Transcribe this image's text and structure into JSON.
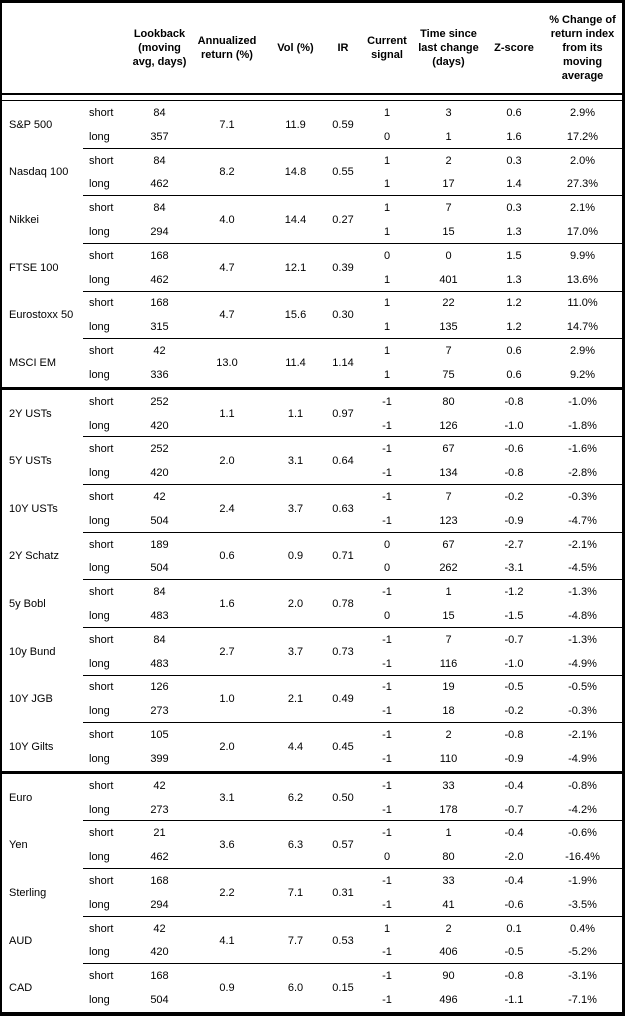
{
  "header": {
    "asset": "",
    "rowtype": "",
    "lookback": "Lookback\n(moving\navg, days)",
    "annualized_return": "Annualized\nreturn (%)",
    "vol": "Vol (%)",
    "ir": "IR",
    "current_signal": "Current\nsignal",
    "time_since": "Time since\nlast change\n(days)",
    "z_score": "Z-score",
    "pct_change": "% Change of\nreturn index\nfrom its\nmoving\naverage"
  },
  "labels": {
    "short": "short",
    "long": "long"
  },
  "sections": [
    {
      "id": "equities",
      "assets": [
        {
          "name": "S&P 500",
          "short_lookback": "84",
          "long_lookback": "357",
          "annualized_return": "7.1",
          "vol": "11.9",
          "ir": "0.59",
          "short": {
            "signal": "1",
            "time": "3",
            "z": "0.6",
            "chg": "2.9%"
          },
          "long": {
            "signal": "0",
            "time": "1",
            "z": "1.6",
            "chg": "17.2%"
          }
        },
        {
          "name": "Nasdaq 100",
          "short_lookback": "84",
          "long_lookback": "462",
          "annualized_return": "8.2",
          "vol": "14.8",
          "ir": "0.55",
          "short": {
            "signal": "1",
            "time": "2",
            "z": "0.3",
            "chg": "2.0%"
          },
          "long": {
            "signal": "1",
            "time": "17",
            "z": "1.4",
            "chg": "27.3%"
          }
        },
        {
          "name": "Nikkei",
          "short_lookback": "84",
          "long_lookback": "294",
          "annualized_return": "4.0",
          "vol": "14.4",
          "ir": "0.27",
          "short": {
            "signal": "1",
            "time": "7",
            "z": "0.3",
            "chg": "2.1%"
          },
          "long": {
            "signal": "1",
            "time": "15",
            "z": "1.3",
            "chg": "17.0%"
          }
        },
        {
          "name": "FTSE 100",
          "short_lookback": "168",
          "long_lookback": "462",
          "annualized_return": "4.7",
          "vol": "12.1",
          "ir": "0.39",
          "short": {
            "signal": "0",
            "time": "0",
            "z": "1.5",
            "chg": "9.9%"
          },
          "long": {
            "signal": "1",
            "time": "401",
            "z": "1.3",
            "chg": "13.6%"
          }
        },
        {
          "name": "Eurostoxx 50",
          "short_lookback": "168",
          "long_lookback": "315",
          "annualized_return": "4.7",
          "vol": "15.6",
          "ir": "0.30",
          "short": {
            "signal": "1",
            "time": "22",
            "z": "1.2",
            "chg": "11.0%"
          },
          "long": {
            "signal": "1",
            "time": "135",
            "z": "1.2",
            "chg": "14.7%"
          }
        },
        {
          "name": "MSCI EM",
          "short_lookback": "42",
          "long_lookback": "336",
          "annualized_return": "13.0",
          "vol": "11.4",
          "ir": "1.14",
          "short": {
            "signal": "1",
            "time": "7",
            "z": "0.6",
            "chg": "2.9%"
          },
          "long": {
            "signal": "1",
            "time": "75",
            "z": "0.6",
            "chg": "9.2%"
          }
        }
      ]
    },
    {
      "id": "bonds",
      "assets": [
        {
          "name": "2Y USTs",
          "short_lookback": "252",
          "long_lookback": "420",
          "annualized_return": "1.1",
          "vol": "1.1",
          "ir": "0.97",
          "short": {
            "signal": "-1",
            "time": "80",
            "z": "-0.8",
            "chg": "-1.0%"
          },
          "long": {
            "signal": "-1",
            "time": "126",
            "z": "-1.0",
            "chg": "-1.8%"
          }
        },
        {
          "name": "5Y USTs",
          "short_lookback": "252",
          "long_lookback": "420",
          "annualized_return": "2.0",
          "vol": "3.1",
          "ir": "0.64",
          "short": {
            "signal": "-1",
            "time": "67",
            "z": "-0.6",
            "chg": "-1.6%"
          },
          "long": {
            "signal": "-1",
            "time": "134",
            "z": "-0.8",
            "chg": "-2.8%"
          }
        },
        {
          "name": "10Y USTs",
          "short_lookback": "42",
          "long_lookback": "504",
          "annualized_return": "2.4",
          "vol": "3.7",
          "ir": "0.63",
          "short": {
            "signal": "-1",
            "time": "7",
            "z": "-0.2",
            "chg": "-0.3%"
          },
          "long": {
            "signal": "-1",
            "time": "123",
            "z": "-0.9",
            "chg": "-4.7%"
          }
        },
        {
          "name": "2Y Schatz",
          "short_lookback": "189",
          "long_lookback": "504",
          "annualized_return": "0.6",
          "vol": "0.9",
          "ir": "0.71",
          "short": {
            "signal": "0",
            "time": "67",
            "z": "-2.7",
            "chg": "-2.1%"
          },
          "long": {
            "signal": "0",
            "time": "262",
            "z": "-3.1",
            "chg": "-4.5%"
          }
        },
        {
          "name": "5y Bobl",
          "short_lookback": "84",
          "long_lookback": "483",
          "annualized_return": "1.6",
          "vol": "2.0",
          "ir": "0.78",
          "short": {
            "signal": "-1",
            "time": "1",
            "z": "-1.2",
            "chg": "-1.3%"
          },
          "long": {
            "signal": "0",
            "time": "15",
            "z": "-1.5",
            "chg": "-4.8%"
          }
        },
        {
          "name": "10y Bund",
          "short_lookback": "84",
          "long_lookback": "483",
          "annualized_return": "2.7",
          "vol": "3.7",
          "ir": "0.73",
          "short": {
            "signal": "-1",
            "time": "7",
            "z": "-0.7",
            "chg": "-1.3%"
          },
          "long": {
            "signal": "-1",
            "time": "116",
            "z": "-1.0",
            "chg": "-4.9%"
          }
        },
        {
          "name": "10Y JGB",
          "short_lookback": "126",
          "long_lookback": "273",
          "annualized_return": "1.0",
          "vol": "2.1",
          "ir": "0.49",
          "short": {
            "signal": "-1",
            "time": "19",
            "z": "-0.5",
            "chg": "-0.5%"
          },
          "long": {
            "signal": "-1",
            "time": "18",
            "z": "-0.2",
            "chg": "-0.3%"
          }
        },
        {
          "name": "10Y Gilts",
          "short_lookback": "105",
          "long_lookback": "399",
          "annualized_return": "2.0",
          "vol": "4.4",
          "ir": "0.45",
          "short": {
            "signal": "-1",
            "time": "2",
            "z": "-0.8",
            "chg": "-2.1%"
          },
          "long": {
            "signal": "-1",
            "time": "110",
            "z": "-0.9",
            "chg": "-4.9%"
          }
        }
      ]
    },
    {
      "id": "currencies",
      "assets": [
        {
          "name": "Euro",
          "short_lookback": "42",
          "long_lookback": "273",
          "annualized_return": "3.1",
          "vol": "6.2",
          "ir": "0.50",
          "short": {
            "signal": "-1",
            "time": "33",
            "z": "-0.4",
            "chg": "-0.8%"
          },
          "long": {
            "signal": "-1",
            "time": "178",
            "z": "-0.7",
            "chg": "-4.2%"
          }
        },
        {
          "name": "Yen",
          "short_lookback": "21",
          "long_lookback": "462",
          "annualized_return": "3.6",
          "vol": "6.3",
          "ir": "0.57",
          "short": {
            "signal": "-1",
            "time": "1",
            "z": "-0.4",
            "chg": "-0.6%"
          },
          "long": {
            "signal": "0",
            "time": "80",
            "z": "-2.0",
            "chg": "-16.4%"
          }
        },
        {
          "name": "Sterling",
          "short_lookback": "168",
          "long_lookback": "294",
          "annualized_return": "2.2",
          "vol": "7.1",
          "ir": "0.31",
          "short": {
            "signal": "-1",
            "time": "33",
            "z": "-0.4",
            "chg": "-1.9%"
          },
          "long": {
            "signal": "-1",
            "time": "41",
            "z": "-0.6",
            "chg": "-3.5%"
          }
        },
        {
          "name": "AUD",
          "short_lookback": "42",
          "long_lookback": "420",
          "annualized_return": "4.1",
          "vol": "7.7",
          "ir": "0.53",
          "short": {
            "signal": "1",
            "time": "2",
            "z": "0.1",
            "chg": "0.4%"
          },
          "long": {
            "signal": "-1",
            "time": "406",
            "z": "-0.5",
            "chg": "-5.2%"
          }
        },
        {
          "name": "CAD",
          "short_lookback": "168",
          "long_lookback": "504",
          "annualized_return": "0.9",
          "vol": "6.0",
          "ir": "0.15",
          "short": {
            "signal": "-1",
            "time": "90",
            "z": "-0.8",
            "chg": "-3.1%"
          },
          "long": {
            "signal": "-1",
            "time": "496",
            "z": "-1.1",
            "chg": "-7.1%"
          }
        }
      ]
    }
  ]
}
